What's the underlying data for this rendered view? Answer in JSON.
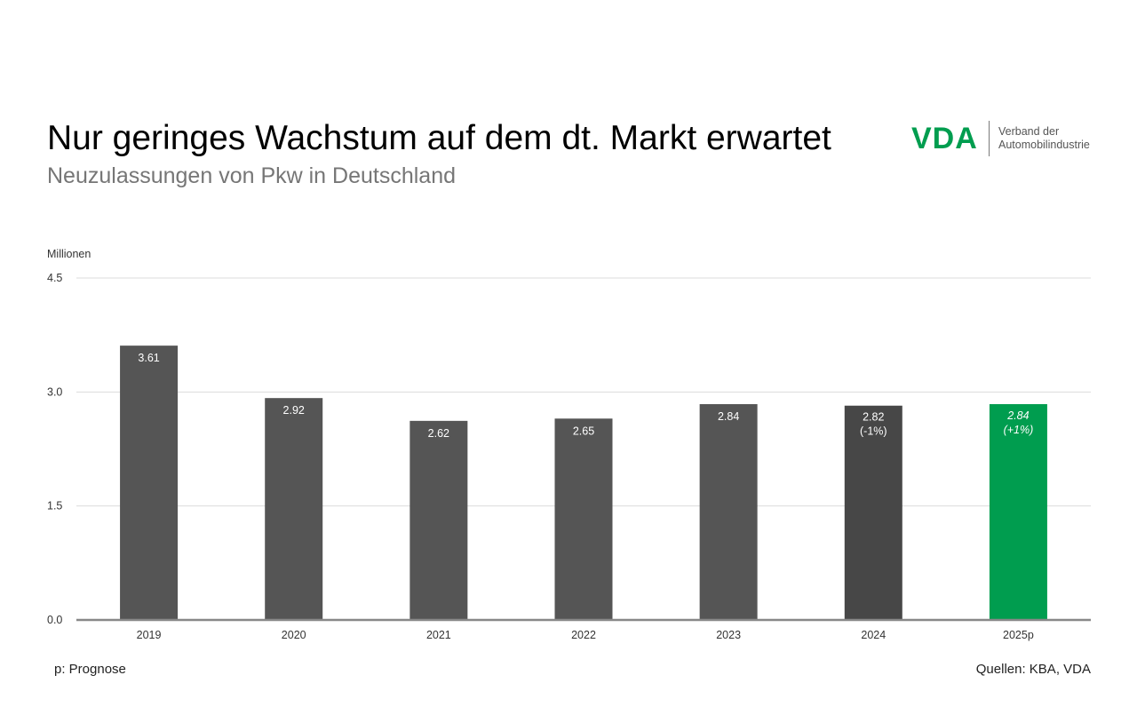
{
  "header": {
    "title": "Nur geringes Wachstum auf dem dt. Markt erwartet",
    "subtitle": "Neuzulassungen von Pkw in Deutschland"
  },
  "logo": {
    "mark": "VDA",
    "line1": "Verband der",
    "line2": "Automobilindustrie",
    "color": "#009d4f"
  },
  "footer": {
    "note": "p: Prognose",
    "sources": "Quellen: KBA, VDA"
  },
  "chart_data": {
    "type": "bar",
    "ylabel": "Millionen",
    "ylim": [
      0,
      4.5
    ],
    "yticks": [
      "0.0",
      "1.5",
      "3.0",
      "4.5"
    ],
    "grid": true,
    "categories": [
      "2019",
      "2020",
      "2021",
      "2022",
      "2023",
      "2024",
      "2025p"
    ],
    "values": [
      3.61,
      2.92,
      2.62,
      2.65,
      2.84,
      2.82,
      2.84
    ],
    "value_labels": [
      "3.61",
      "2.92",
      "2.62",
      "2.65",
      "2.84",
      "2.82",
      "2.84"
    ],
    "change_labels": [
      "",
      "",
      "",
      "",
      "",
      "(-1%)",
      "(+1%)"
    ],
    "colors": [
      "#555555",
      "#555555",
      "#555555",
      "#555555",
      "#555555",
      "#474747",
      "#009d4f"
    ],
    "italic_labels": [
      false,
      false,
      false,
      false,
      false,
      false,
      true
    ]
  }
}
